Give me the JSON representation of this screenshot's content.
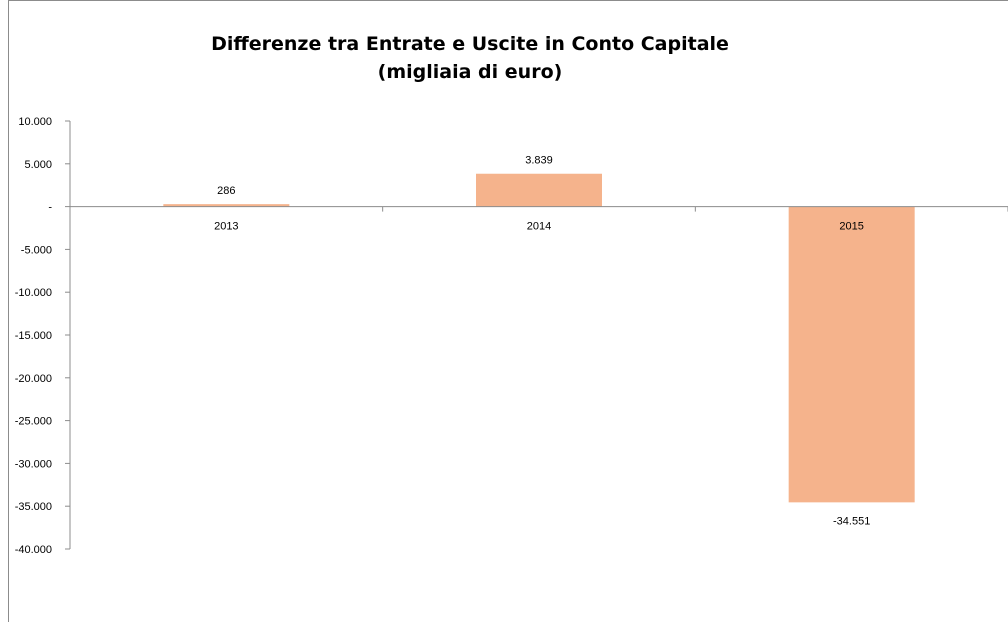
{
  "chart_data": {
    "type": "bar",
    "title": "Differenze tra Entrate e Uscite in Conto Capitale",
    "subtitle": "(migliaia di euro)",
    "categories": [
      "2013",
      "2014",
      "2015"
    ],
    "values": [
      286,
      3839,
      -34551
    ],
    "value_labels": [
      "286",
      "3.839",
      "-34.551"
    ],
    "ylim": [
      -40000,
      10000
    ],
    "yticks": [
      10000,
      5000,
      0,
      -5000,
      -10000,
      -15000,
      -20000,
      -25000,
      -30000,
      -35000,
      -40000
    ],
    "ytick_labels": [
      "10.000",
      "5.000",
      "-",
      "-5.000",
      "-10.000",
      "-15.000",
      "-20.000",
      "-25.000",
      "-30.000",
      "-35.000",
      "-40.000"
    ],
    "grid": false,
    "legend": "none",
    "bar_color": "#f5b38c",
    "axis_color": "#8c8c8c"
  }
}
